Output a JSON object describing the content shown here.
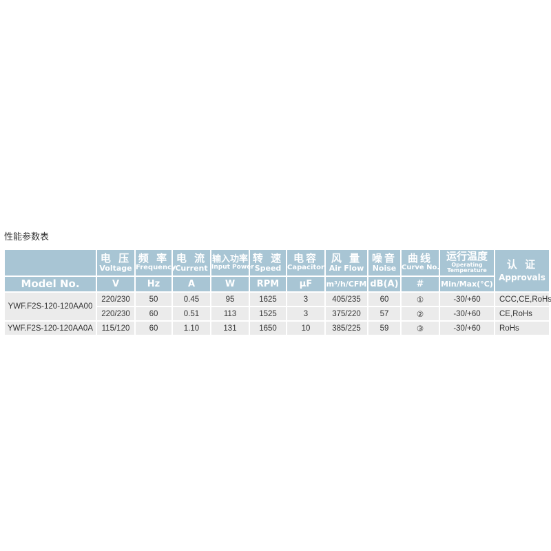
{
  "title": "性能参数表",
  "headers": [
    {
      "cn": "电 压",
      "en": "Voltage",
      "unit": "V"
    },
    {
      "cn": "频 率",
      "en": "Frequency",
      "unit": "Hz"
    },
    {
      "cn": "电 流",
      "en": "Current",
      "unit": "A"
    },
    {
      "cn": "输入功率",
      "en": "Input Power",
      "unit": "W"
    },
    {
      "cn": "转 速",
      "en": "Speed",
      "unit": "RPM"
    },
    {
      "cn": "电容",
      "en": "Capacitor",
      "unit": "μF"
    },
    {
      "cn": "风 量",
      "en": "Air Flow",
      "unit": "m³/h/CFM"
    },
    {
      "cn": "噪音",
      "en": "Noise",
      "unit": "dB(A)"
    },
    {
      "cn": "曲线",
      "en": "Curve No.",
      "unit": "#"
    },
    {
      "cn": "运行温度",
      "en": "Operating Temperature",
      "unit": "Min/Max(°C)"
    }
  ],
  "model_header": "Model No.",
  "approvals_header": {
    "cn": "认 证",
    "en": "Approvals"
  },
  "models": [
    "YWF.F2S-120-120AA00",
    "YWF.F2S-120-120AA0A"
  ],
  "rows": [
    [
      "220/230",
      "50",
      "0.45",
      "95",
      "1625",
      "3",
      "405/235",
      "60",
      "①",
      "-30/+60",
      "CCC,CE,RoHs"
    ],
    [
      "220/230",
      "60",
      "0.51",
      "113",
      "1525",
      "3",
      "375/220",
      "57",
      "②",
      "-30/+60",
      "CE,RoHs"
    ],
    [
      "115/120",
      "60",
      "1.10",
      "131",
      "1650",
      "10",
      "385/225",
      "59",
      "③",
      "-30/+60",
      "RoHs"
    ]
  ]
}
